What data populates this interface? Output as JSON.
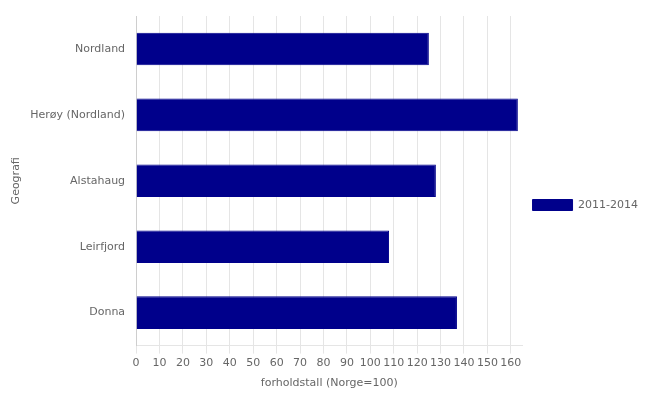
{
  "chart_data": {
    "type": "bar",
    "orientation": "horizontal",
    "categories": [
      "Donna",
      "Leirfjord",
      "Alstahaug",
      "Herøy (Nordland)",
      "Nordland"
    ],
    "series": [
      {
        "name": "2011-2014",
        "color": "#00008B",
        "values": [
          137,
          108,
          128,
          163,
          125
        ]
      }
    ],
    "xlabel": "forholdstall (Norge=100)",
    "ylabel": "Geografi",
    "xlim": [
      0,
      165
    ],
    "xticks": [
      0,
      10,
      20,
      30,
      40,
      50,
      60,
      70,
      80,
      90,
      100,
      110,
      120,
      130,
      140,
      150,
      160
    ],
    "grid": true,
    "legend": "right"
  }
}
